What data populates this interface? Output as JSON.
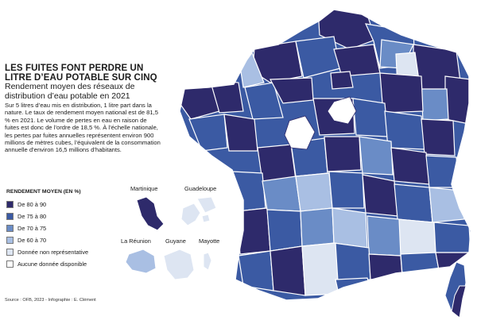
{
  "title": "LES FUITES FONT PERDRE UN LITRE D’EAU POTABLE SUR CINQ",
  "subtitle": "Rendement moyen des réseaux de distribution d’eau potable en 2021",
  "body": "Sur 5 litres d’eau mis en distribution, 1 litre part dans la nature. Le taux de rendement moyen national est de 81,5 % en 2021. Le volume de pertes en eau en raison de fuites est donc de l’ordre de 18,5 %. À l’échelle nationale, les pertes par fuites annuelles représentent environ 900 millions de mètres cubes, l’équivalent de la consommation annuelle d’environ 16,5 millions d’habitants.",
  "legend": {
    "title": "RENDEMENT MOYEN (EN %)",
    "items": [
      {
        "label": "De 80 à 90",
        "color": "#2e2a6b"
      },
      {
        "label": "De 75 à 80",
        "color": "#3b5aa3"
      },
      {
        "label": "De 70 à 75",
        "color": "#6a8cc6"
      },
      {
        "label": "De 60 à 70",
        "color": "#a9bfe3"
      },
      {
        "label": "Donnée non représentative",
        "color": "#dde5f2"
      },
      {
        "label": "Aucune donnée disponible",
        "color": "#ffffff"
      }
    ]
  },
  "overseas": {
    "martinique": "Martinique",
    "guadeloupe": "Guadeloupe",
    "reunion": "La Réunion",
    "guyane": "Guyane",
    "mayotte": "Mayotte"
  },
  "source": "Source : OFB, 2023 - Infographie : E. Clément"
}
